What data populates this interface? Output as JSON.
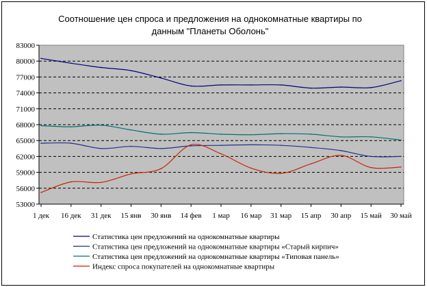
{
  "chart_data": {
    "type": "line",
    "title_lines": [
      "Соотношение цен спроса и предложения на однокомнатные квартиры по",
      "данным \"Планеты Оболонь\""
    ],
    "xlabel": "",
    "ylabel": "",
    "ylim": [
      53000,
      83000
    ],
    "yticks": [
      53000,
      56000,
      59000,
      62000,
      65000,
      68000,
      71000,
      74000,
      77000,
      80000,
      83000
    ],
    "ytick_labels": [
      "53000",
      "56000",
      "59000",
      "62000",
      "65000",
      "68000",
      "71000",
      "74000",
      "77000",
      "80000",
      "83000"
    ],
    "categories": [
      "1 дек",
      "16 дек",
      "31 дек",
      "15 янв",
      "30 янв",
      "14 фев",
      "1 мар",
      "16 мар",
      "31 мар",
      "15 апр",
      "30 апр",
      "15 май",
      "30 май"
    ],
    "grid": "horizontal dashed",
    "plot_background": "#c0c0c0",
    "legend_position": "bottom",
    "series": [
      {
        "name": "Статистика цен предложений на однокомнатные квартиры",
        "color": "#000080",
        "values": [
          80500,
          79600,
          78800,
          78200,
          76800,
          75300,
          75500,
          75500,
          75500,
          74900,
          75100,
          75000,
          76300
        ]
      },
      {
        "name": "Статистика цен предложений на однокомнатные квартиры «Старый кирпич»",
        "color": "#1f2f8f",
        "values": [
          64500,
          64500,
          63500,
          63900,
          63500,
          64000,
          64100,
          64200,
          64100,
          63700,
          63100,
          62000,
          62000
        ]
      },
      {
        "name": "Статистика цен предложений на однокомнатные квартиры «Типовая панель»",
        "color": "#007070",
        "values": [
          67800,
          67600,
          67900,
          67000,
          66200,
          66500,
          66200,
          66100,
          66300,
          66200,
          65700,
          65700,
          65100
        ]
      },
      {
        "name": "Индекс спроса покупателей на однокомнатные квартиры",
        "color": "#cc2200",
        "values": [
          55200,
          57200,
          57100,
          58700,
          59700,
          64200,
          62500,
          59800,
          58800,
          60600,
          62200,
          59900,
          60000
        ]
      }
    ]
  }
}
